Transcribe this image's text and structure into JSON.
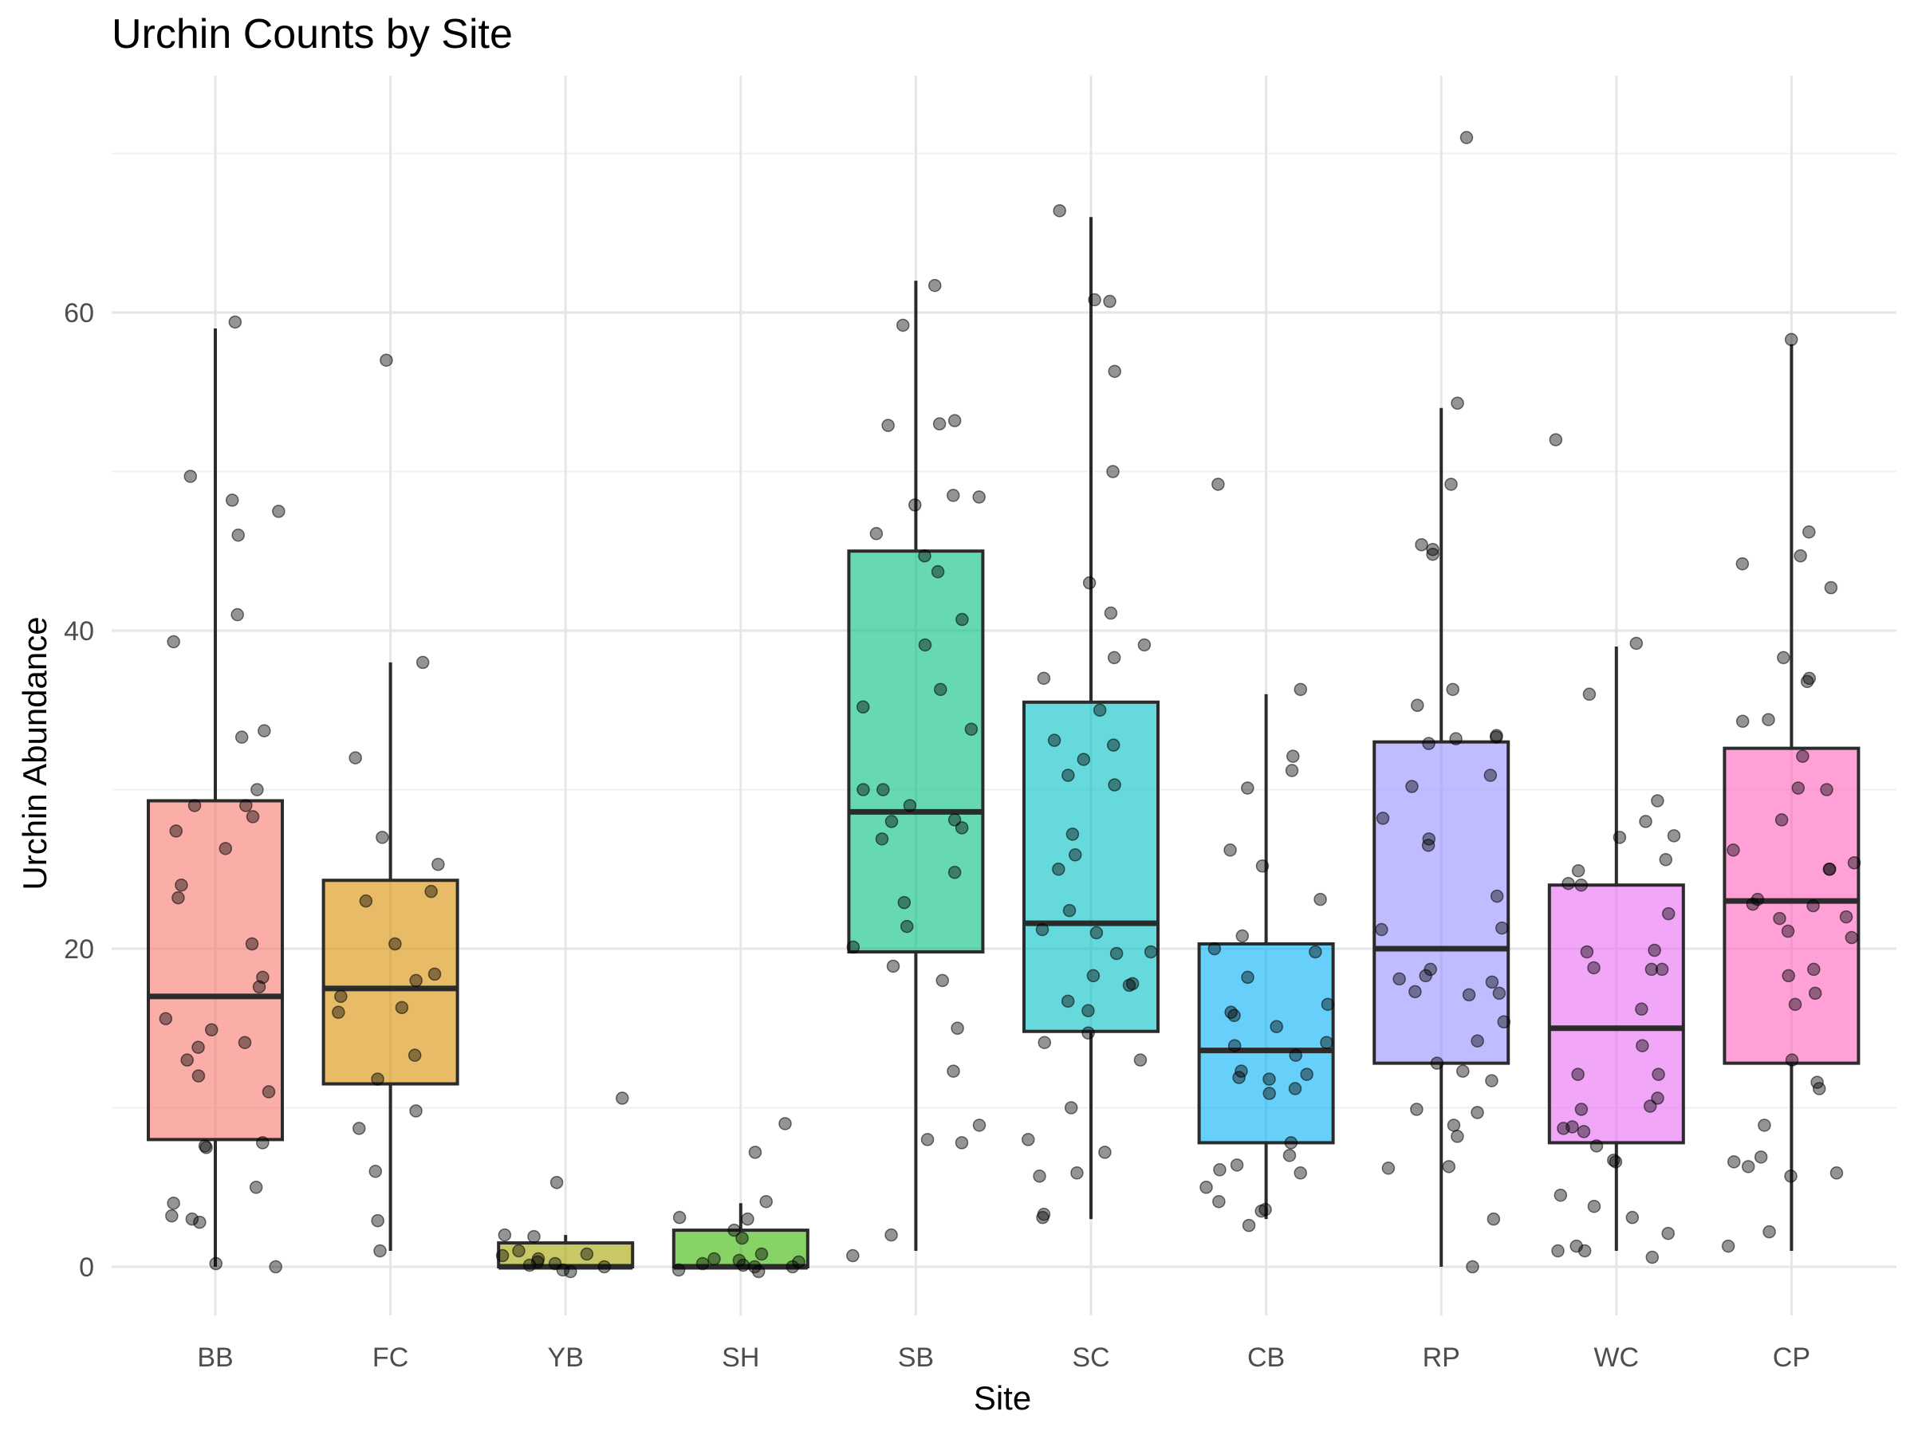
{
  "chart_data": {
    "type": "box",
    "title": "Urchin Counts by Site",
    "xlabel": "Site",
    "ylabel": "Urchin Abundance",
    "ylim": [
      -4,
      74
    ],
    "yticks": [
      0,
      20,
      40,
      60
    ],
    "grid": true,
    "legend": "none",
    "categories": [
      "BB",
      "FC",
      "YB",
      "SH",
      "SB",
      "SC",
      "CB",
      "RP",
      "WC",
      "CP"
    ],
    "colors": [
      "#F8766D",
      "#D89000",
      "#A3A500",
      "#39B600",
      "#00BF7D",
      "#00BFC4",
      "#00B0F6",
      "#9590FF",
      "#E76BF3",
      "#FF62BC"
    ],
    "boxes": [
      {
        "site": "BB",
        "min": 0,
        "q1": 8,
        "median": 17,
        "q3": 29.3,
        "max": 59
      },
      {
        "site": "FC",
        "min": 1,
        "q1": 11.5,
        "median": 17.5,
        "q3": 24.3,
        "max": 38
      },
      {
        "site": "YB",
        "min": 0,
        "q1": 0,
        "median": 0,
        "q3": 1.5,
        "max": 2
      },
      {
        "site": "SH",
        "min": 0,
        "q1": 0,
        "median": 0,
        "q3": 2.3,
        "max": 4
      },
      {
        "site": "SB",
        "min": 1,
        "q1": 19.8,
        "median": 28.6,
        "q3": 45,
        "max": 62
      },
      {
        "site": "SC",
        "min": 3,
        "q1": 14.8,
        "median": 21.6,
        "q3": 35.5,
        "max": 66
      },
      {
        "site": "CB",
        "min": 3,
        "q1": 7.8,
        "median": 13.6,
        "q3": 20.3,
        "max": 36
      },
      {
        "site": "RP",
        "min": 0,
        "q1": 12.8,
        "median": 20,
        "q3": 33,
        "max": 54
      },
      {
        "site": "WC",
        "min": 1,
        "q1": 7.8,
        "median": 15,
        "q3": 24,
        "max": 39
      },
      {
        "site": "CP",
        "min": 1,
        "q1": 12.8,
        "median": 23,
        "q3": 32.6,
        "max": 58
      }
    ],
    "points": [
      {
        "site": "BB",
        "values": [
          59.4,
          49.7,
          48.2,
          47.5,
          46,
          41,
          39.3,
          33.7,
          33.3,
          30,
          29,
          29,
          28.3,
          27.4,
          26.3,
          24,
          23.2,
          20.3,
          18.2,
          17.6,
          15.6,
          14.9,
          14.1,
          13.8,
          13,
          12,
          11,
          7.8,
          7.6,
          7.5,
          5,
          4,
          3.2,
          3,
          2.8,
          0.2,
          0
        ]
      },
      {
        "site": "FC",
        "values": [
          57,
          38,
          32,
          27,
          25.3,
          23.6,
          23,
          20.3,
          18.4,
          18,
          17,
          16.3,
          16,
          13.3,
          11.8,
          9.8,
          8.7,
          6,
          2.9,
          1
        ]
      },
      {
        "site": "YB",
        "values": [
          10.6,
          5.3,
          2,
          1.9,
          1,
          0.8,
          0.7,
          0.5,
          0.3,
          0.2,
          0.1,
          0,
          -0.2,
          -0.3
        ]
      },
      {
        "site": "SH",
        "values": [
          9,
          7.2,
          4.1,
          3.1,
          3,
          2.3,
          1.8,
          0.8,
          0.5,
          0.4,
          0.3,
          0.2,
          0.1,
          0,
          0,
          -0.2,
          -0.3
        ]
      },
      {
        "site": "SB",
        "values": [
          61.7,
          59.2,
          53.2,
          53,
          52.9,
          48.5,
          48.4,
          47.9,
          46.1,
          44.7,
          43.7,
          40.7,
          39.1,
          36.3,
          35.2,
          33.8,
          30,
          30,
          29,
          28.1,
          28,
          27.6,
          26.9,
          24.8,
          22.9,
          21.4,
          20.1,
          18.9,
          18,
          15,
          12.3,
          8.9,
          8,
          7.8,
          2,
          0.7
        ]
      },
      {
        "site": "SC",
        "values": [
          66.4,
          60.8,
          60.7,
          56.3,
          50,
          43,
          41.1,
          39.1,
          38.3,
          37,
          35,
          33.1,
          32.8,
          31.9,
          30.9,
          30.3,
          27.2,
          25.9,
          25,
          22.4,
          21.2,
          21,
          19.8,
          19.7,
          18.3,
          17.8,
          17.7,
          16.7,
          16.1,
          14.7,
          14.1,
          13,
          10,
          8,
          7.2,
          5.9,
          5.7,
          3.3,
          3.1
        ]
      },
      {
        "site": "CB",
        "values": [
          49.2,
          36.3,
          32.1,
          31.2,
          30.1,
          26.2,
          25.2,
          23.1,
          20.8,
          20,
          19.8,
          18.2,
          16.5,
          16,
          15.8,
          15.1,
          14.1,
          13.9,
          13.3,
          12.3,
          12.1,
          11.9,
          11.8,
          11.2,
          10.9,
          7.8,
          7,
          6.4,
          6.1,
          5.9,
          5,
          4.1,
          3.6,
          3.5,
          2.6
        ]
      },
      {
        "site": "RP",
        "values": [
          71,
          54.3,
          49.2,
          45.4,
          45.1,
          44.8,
          36.3,
          35.3,
          33.4,
          33.3,
          33.2,
          32.9,
          30.9,
          30.2,
          28.2,
          26.9,
          26.5,
          23.3,
          21.3,
          21.2,
          18.7,
          18.3,
          18.1,
          17.9,
          17.3,
          17.2,
          17.1,
          15.4,
          14.2,
          12.8,
          12.3,
          11.7,
          9.9,
          9.7,
          8.9,
          8.2,
          6.3,
          6.2,
          3,
          0
        ]
      },
      {
        "site": "WC",
        "values": [
          52,
          39.2,
          36,
          29.3,
          28,
          27.1,
          27,
          25.6,
          24.9,
          24.1,
          24,
          22.2,
          19.9,
          19.8,
          18.8,
          18.7,
          18.7,
          16.2,
          13.9,
          12.1,
          12.1,
          10.6,
          10.1,
          9.9,
          8.8,
          8.7,
          8.5,
          7.6,
          6.7,
          6.6,
          4.5,
          3.8,
          3.1,
          2.1,
          1.3,
          1,
          1,
          0.6
        ]
      },
      {
        "site": "CP",
        "values": [
          58.3,
          46.2,
          44.7,
          44.2,
          42.7,
          38.3,
          37,
          36.8,
          34.4,
          34.3,
          32.1,
          30.1,
          30,
          28.1,
          26.2,
          25.4,
          25,
          25,
          23.1,
          22.8,
          22.7,
          22,
          21.9,
          21.1,
          20.7,
          18.7,
          18.3,
          17.2,
          16.5,
          13,
          11.6,
          11.2,
          8.9,
          6.9,
          6.6,
          6.3,
          5.9,
          5.7,
          2.2,
          1.3
        ]
      }
    ]
  }
}
